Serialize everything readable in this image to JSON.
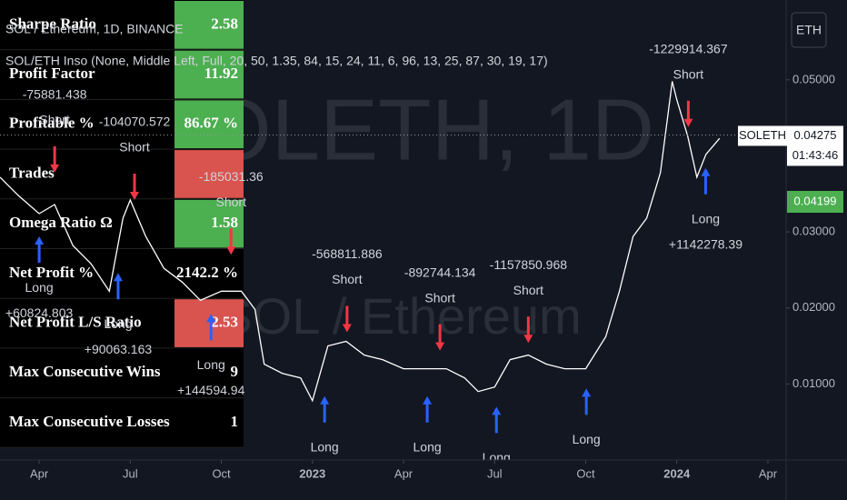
{
  "chart_data": {
    "type": "line",
    "title": "SOLETH, 1D",
    "subtitle": "SOL / Ethereum",
    "symbol_label": "SOL / Ethereum, 1D, BINANCE",
    "indicator_label": "SOL/ETH Inso (None, Middle Left, Full, 20, 50, 1.35, 84, 15, 24, 11, 6, 96, 13, 25, 87, 30, 19, 17)",
    "currency": "ETH",
    "color": "#ffffff",
    "x": [
      -1.29,
      -0.69,
      0,
      0.51,
      1.11,
      1.71,
      2.31,
      2.76,
      3,
      3.51,
      4.11,
      4.71,
      5.31,
      6,
      6.66,
      7.11,
      7.41,
      8.01,
      8.61,
      9,
      9.51,
      10.11,
      10.71,
      11.31,
      12,
      12.81,
      13.41,
      14.01,
      14.46,
      15,
      15.51,
      16.11,
      16.71,
      17.31,
      18,
      18.66,
      19.11,
      19.56,
      20.01,
      20.46,
      20.85,
      21,
      21.36,
      21.66,
      21.96,
      22.41
    ],
    "values": [
      0.0372,
      0.0348,
      0.0324,
      0.0336,
      0.0282,
      0.0258,
      0.0222,
      0.0318,
      0.0342,
      0.0294,
      0.0252,
      0.0234,
      0.021,
      0.0222,
      0.0222,
      0.0198,
      0.0126,
      0.0114,
      0.0108,
      0.0078,
      0.015,
      0.0156,
      0.0138,
      0.0132,
      0.012,
      0.012,
      0.012,
      0.0108,
      0.009,
      0.0096,
      0.0132,
      0.0138,
      0.0126,
      0.012,
      0.012,
      0.0162,
      0.0222,
      0.0294,
      0.0318,
      0.0378,
      0.0498,
      0.0474,
      0.0426,
      0.0372,
      0.0402,
      0.0423
    ],
    "xlim": [
      -1.29,
      24.6
    ],
    "xticks": [
      {
        "value": 0,
        "label": "Apr"
      },
      {
        "value": 3,
        "label": "Jul"
      },
      {
        "value": 6,
        "label": "Oct"
      },
      {
        "value": 9,
        "label": "2023"
      },
      {
        "value": 12,
        "label": "Apr"
      },
      {
        "value": 15,
        "label": "Jul"
      },
      {
        "value": 18,
        "label": "Oct"
      },
      {
        "value": 21,
        "label": "2024"
      },
      {
        "value": 24,
        "label": "Apr"
      }
    ],
    "ylim": [
      0,
      0.0605
    ],
    "yticks": [
      {
        "value": 0.01,
        "label": "0.01000"
      },
      {
        "value": 0.02,
        "label": "0.02000"
      },
      {
        "value": 0.03,
        "label": "0.03000"
      },
      {
        "value": 0.05,
        "label": "0.05000"
      }
    ],
    "last_price": {
      "symbol": "SOLETH",
      "value": 0.04275,
      "countdown": "01:43:46"
    },
    "indicator_value": 0.04199,
    "trades": [
      {
        "side": "Short",
        "x": 0.51,
        "price": 0.036,
        "pnl": "-75881.438"
      },
      {
        "side": "Short",
        "x": 3.14,
        "price": 0.0324,
        "pnl": "-104070.572"
      },
      {
        "side": "Short",
        "x": 6.32,
        "price": 0.0252,
        "pnl": "-185031.36"
      },
      {
        "side": "Short",
        "x": 10.14,
        "price": 0.015,
        "pnl": "-568811.886"
      },
      {
        "side": "Short",
        "x": 13.2,
        "price": 0.0126,
        "pnl": "-892744.134"
      },
      {
        "side": "Short",
        "x": 16.11,
        "price": 0.0136,
        "pnl": "-1157850.968"
      },
      {
        "side": "Short",
        "x": 21.38,
        "price": 0.042,
        "pnl": "-1229914.367"
      },
      {
        "side": "Long",
        "x": 0,
        "price": 0.0312,
        "pnl": "+60824.803"
      },
      {
        "side": "Long",
        "x": 2.6,
        "price": 0.0264,
        "pnl": "+90063.163"
      },
      {
        "side": "Long",
        "x": 5.66,
        "price": 0.021,
        "pnl": "+144594.94"
      },
      {
        "side": "Long",
        "x": 9.4,
        "price": 0.0102
      },
      {
        "side": "Long",
        "x": 12.78,
        "price": 0.0102
      },
      {
        "side": "Long",
        "x": 15.06,
        "price": 0.0088
      },
      {
        "side": "Long",
        "x": 18.02,
        "price": 0.0112
      },
      {
        "side": "Long",
        "x": 21.95,
        "price": 0.0402,
        "pnl": "+1142278.39"
      }
    ]
  },
  "stats_table": {
    "rows": [
      {
        "label": "Sharpe Ratio",
        "value": "2.58",
        "color": "#4caf50"
      },
      {
        "label": "Profit Factor",
        "value": "11.92",
        "color": "#4caf50"
      },
      {
        "label": "Profitable %",
        "value": "86.67 %",
        "color": "#4caf50"
      },
      {
        "label": "Trades",
        "color": "#d9534f"
      },
      {
        "label": "Omega Ratio Ω",
        "value": "1.58",
        "color": "#4caf50"
      },
      {
        "label": "Net Profit %",
        "value": "2142.2 %"
      },
      {
        "label": "Net Profit L/S Ratio",
        "value": "2.53",
        "color": "#d9534f"
      },
      {
        "label": "Max Consecutive Wins",
        "value": "9"
      },
      {
        "label": "Max Consecutive Losses",
        "value": "1"
      }
    ]
  }
}
